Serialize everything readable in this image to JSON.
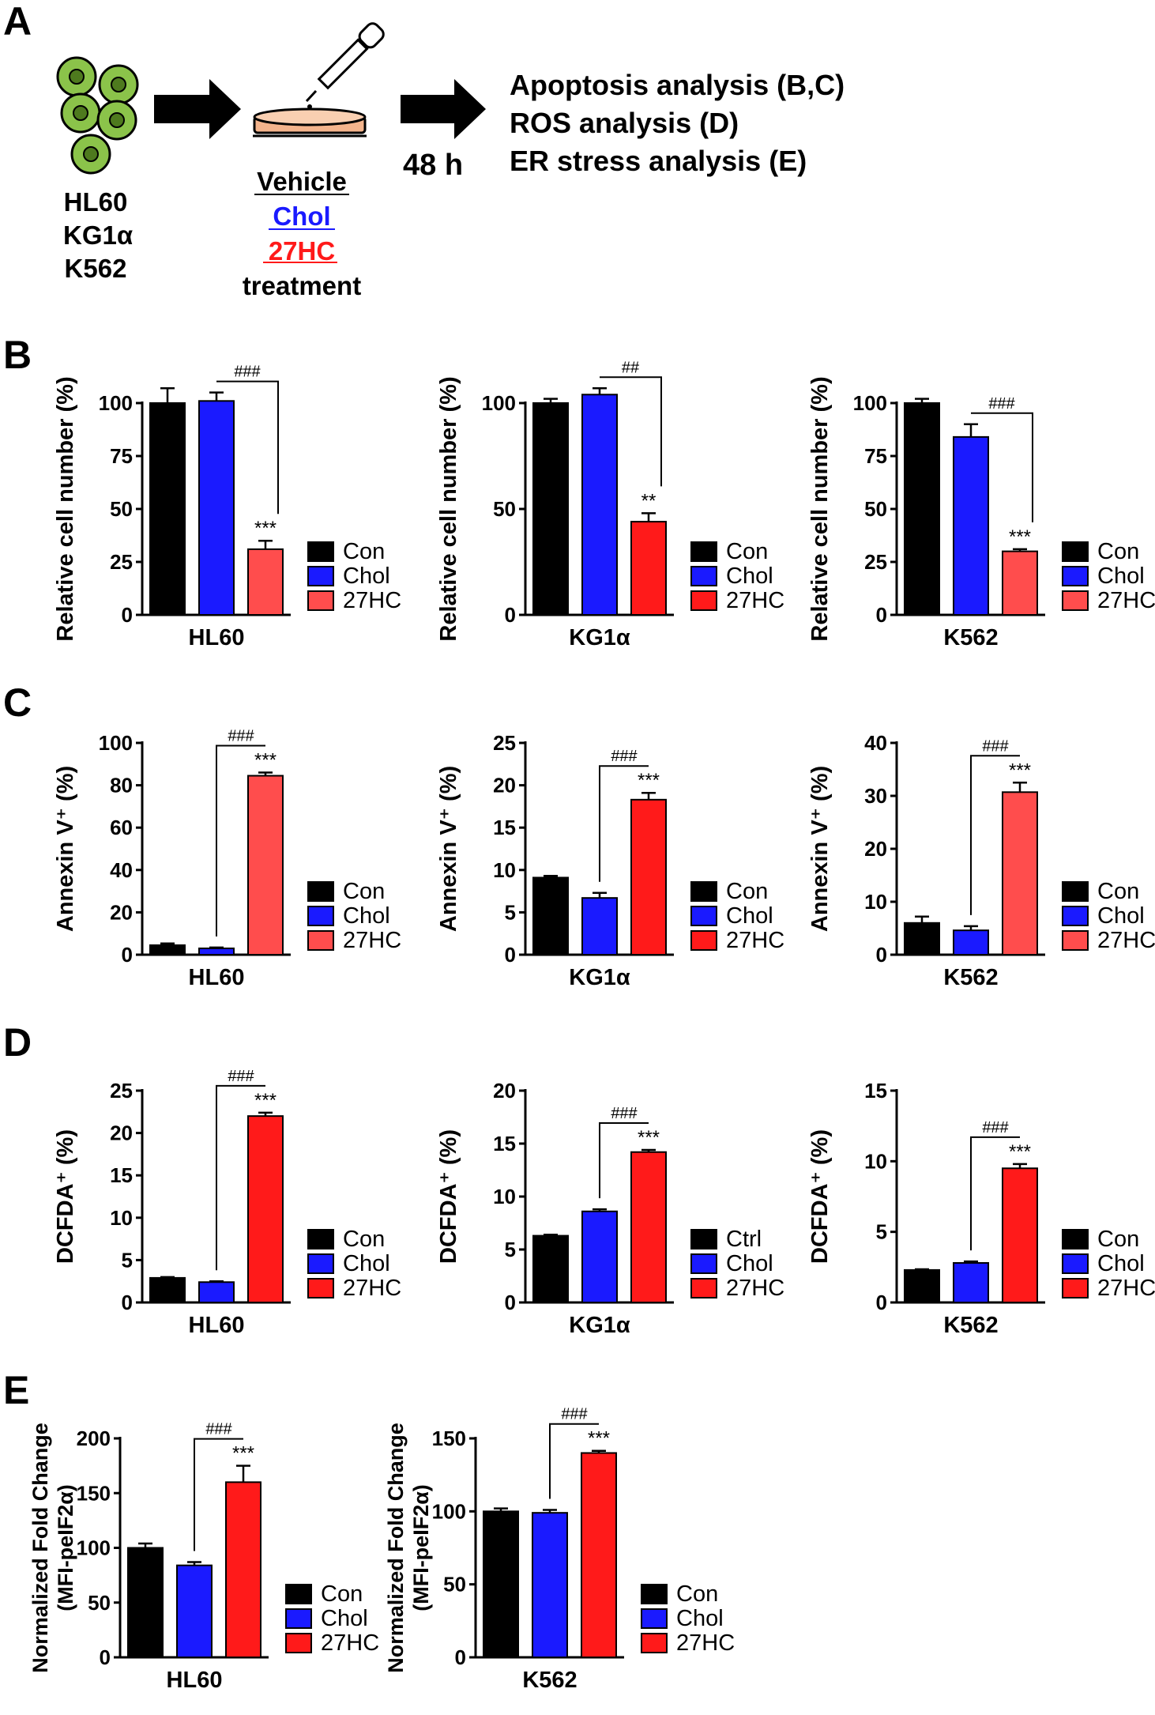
{
  "panel_letters": [
    "A",
    "B",
    "C",
    "D",
    "E"
  ],
  "schema": {
    "cell_lines": [
      "HL60",
      "KG1α",
      "K562"
    ],
    "treatments": [
      "Vehicle",
      "Chol",
      "27HC"
    ],
    "treatment_word": "treatment",
    "duration": "48 h",
    "analyses": [
      "Apoptosis analysis (B,C)",
      "ROS analysis (D)",
      "ER stress analysis (E)"
    ],
    "colors": {
      "cell_fill": "#8BC34A",
      "chol": "#1a1aff",
      "hc": "#ff1a1a",
      "dish": "#f4b48c",
      "arrow": "#000000"
    }
  },
  "chart_data": [
    {
      "id": "B_HL60",
      "type": "bar",
      "ylabel": "Relative cell number (%)",
      "xlabel": "HL60",
      "categories": [
        "Con",
        "Chol",
        "27HC"
      ],
      "values": [
        100,
        101,
        31
      ],
      "errors": [
        7,
        4,
        4
      ],
      "ylim": [
        0,
        100
      ],
      "yticks": [
        0,
        25,
        50,
        75,
        100
      ],
      "colors": [
        "#000000",
        "#1a1aff",
        "#ff4d4d"
      ],
      "legend": [
        "Con",
        "Chol",
        "27HC"
      ],
      "star_label": "***",
      "hash_label": "###",
      "bracket_from": 1
    },
    {
      "id": "B_KG1a",
      "type": "bar",
      "ylabel": "Relative cell number (%)",
      "xlabel": "KG1α",
      "categories": [
        "Con",
        "Chol",
        "27HC"
      ],
      "values": [
        100,
        104,
        44
      ],
      "errors": [
        2,
        3,
        4
      ],
      "ylim": [
        0,
        100
      ],
      "yticks": [
        0,
        50,
        100
      ],
      "colors": [
        "#000000",
        "#1a1aff",
        "#ff1a1a"
      ],
      "legend": [
        "Con",
        "Chol",
        "27HC"
      ],
      "star_label": "**",
      "hash_label": "##",
      "bracket_from": 1
    },
    {
      "id": "B_K562",
      "type": "bar",
      "ylabel": "Relative cell number (%)",
      "xlabel": "K562",
      "categories": [
        "Con",
        "Chol",
        "27HC"
      ],
      "values": [
        100,
        84,
        30
      ],
      "errors": [
        2,
        6,
        1
      ],
      "ylim": [
        0,
        100
      ],
      "yticks": [
        0,
        25,
        50,
        75,
        100
      ],
      "colors": [
        "#000000",
        "#1a1aff",
        "#ff4d4d"
      ],
      "legend": [
        "Con",
        "Chol",
        "27HC"
      ],
      "star_label": "***",
      "hash_label": "###",
      "bracket_from": 1
    },
    {
      "id": "C_HL60",
      "type": "bar",
      "ylabel": "Annexin V⁺ (%)",
      "xlabel": "HL60",
      "categories": [
        "Con",
        "Chol",
        "27HC"
      ],
      "values": [
        4.5,
        3,
        84.5
      ],
      "errors": [
        0.8,
        0.4,
        1.5
      ],
      "ylim": [
        0,
        100
      ],
      "yticks": [
        0,
        20,
        40,
        60,
        80,
        100
      ],
      "colors": [
        "#000000",
        "#1a1aff",
        "#ff4d4d"
      ],
      "legend": [
        "Con",
        "Chol",
        "27HC"
      ],
      "star_label": "***",
      "hash_label": "###",
      "bracket_from": 1
    },
    {
      "id": "C_KG1a",
      "type": "bar",
      "ylabel": "Annexin V⁺ (%)",
      "xlabel": "KG1α",
      "categories": [
        "Con",
        "Chol",
        "27HC"
      ],
      "values": [
        9.1,
        6.7,
        18.3
      ],
      "errors": [
        0.2,
        0.6,
        0.8
      ],
      "ylim": [
        0,
        25
      ],
      "yticks": [
        0,
        5,
        10,
        15,
        20,
        25
      ],
      "colors": [
        "#000000",
        "#1a1aff",
        "#ff1a1a"
      ],
      "legend": [
        "Con",
        "Chol",
        "27HC"
      ],
      "star_label": "***",
      "hash_label": "###",
      "bracket_from": 1
    },
    {
      "id": "C_K562",
      "type": "bar",
      "ylabel": "Annexin V⁺ (%)",
      "xlabel": "K562",
      "categories": [
        "Con",
        "Chol",
        "27HC"
      ],
      "values": [
        6,
        4.6,
        30.7
      ],
      "errors": [
        1.2,
        0.8,
        1.8
      ],
      "ylim": [
        0,
        40
      ],
      "yticks": [
        0,
        10,
        20,
        30,
        40
      ],
      "colors": [
        "#000000",
        "#1a1aff",
        "#ff4d4d"
      ],
      "legend": [
        "Con",
        "Chol",
        "27HC"
      ],
      "star_label": "***",
      "hash_label": "###",
      "bracket_from": 1
    },
    {
      "id": "D_HL60",
      "type": "bar",
      "ylabel": "DCFDA⁺ (%)",
      "xlabel": "HL60",
      "categories": [
        "Con",
        "Chol",
        "27HC"
      ],
      "values": [
        2.9,
        2.4,
        22
      ],
      "errors": [
        0.1,
        0.1,
        0.4
      ],
      "ylim": [
        0,
        25
      ],
      "yticks": [
        0,
        5,
        10,
        15,
        20,
        25
      ],
      "colors": [
        "#000000",
        "#1a1aff",
        "#ff1a1a"
      ],
      "legend": [
        "Con",
        "Chol",
        "27HC"
      ],
      "star_label": "***",
      "hash_label": "###",
      "bracket_from": 1
    },
    {
      "id": "D_KG1a",
      "type": "bar",
      "ylabel": "DCFDA⁺ (%)",
      "xlabel": "KG1α",
      "categories": [
        "Ctrl",
        "Chol",
        "27HC"
      ],
      "values": [
        6.3,
        8.6,
        14.2
      ],
      "errors": [
        0.1,
        0.2,
        0.2
      ],
      "ylim": [
        0,
        20
      ],
      "yticks": [
        0,
        5,
        10,
        15,
        20
      ],
      "colors": [
        "#000000",
        "#1a1aff",
        "#ff1a1a"
      ],
      "legend": [
        "Ctrl",
        "Chol",
        "27HC"
      ],
      "star_label": "***",
      "hash_label": "###",
      "bracket_from": 1
    },
    {
      "id": "D_K562",
      "type": "bar",
      "ylabel": "DCFDA⁺ (%)",
      "xlabel": "K562",
      "categories": [
        "Con",
        "Chol",
        "27HC"
      ],
      "values": [
        2.3,
        2.8,
        9.5
      ],
      "errors": [
        0.05,
        0.1,
        0.3
      ],
      "ylim": [
        0,
        15
      ],
      "yticks": [
        0,
        5,
        10,
        15
      ],
      "colors": [
        "#000000",
        "#1a1aff",
        "#ff1a1a"
      ],
      "legend": [
        "Con",
        "Chol",
        "27HC"
      ],
      "star_label": "***",
      "hash_label": "###",
      "bracket_from": 1
    },
    {
      "id": "E_HL60",
      "type": "bar",
      "ylabel": [
        "Normalized Fold Change",
        "(MFI-peIF2α)"
      ],
      "xlabel": "HL60",
      "categories": [
        "Con",
        "Chol",
        "27HC"
      ],
      "values": [
        100,
        84,
        160
      ],
      "errors": [
        4,
        3,
        15
      ],
      "ylim": [
        0,
        200
      ],
      "yticks": [
        0,
        50,
        100,
        150,
        200
      ],
      "colors": [
        "#000000",
        "#1a1aff",
        "#ff1a1a"
      ],
      "legend": [
        "Con",
        "Chol",
        "27HC"
      ],
      "star_label": "***",
      "hash_label": "###",
      "bracket_from": 1
    },
    {
      "id": "E_K562",
      "type": "bar",
      "ylabel": [
        "Normalized Fold Change",
        "(MFI-peIF2α)"
      ],
      "xlabel": "K562",
      "categories": [
        "Con",
        "Chol",
        "27HC"
      ],
      "values": [
        100,
        99,
        140
      ],
      "errors": [
        2,
        2,
        1.5
      ],
      "ylim": [
        0,
        150
      ],
      "yticks": [
        0,
        50,
        100,
        150
      ],
      "colors": [
        "#000000",
        "#1a1aff",
        "#ff1a1a"
      ],
      "legend": [
        "Con",
        "Chol",
        "27HC"
      ],
      "star_label": "***",
      "hash_label": "###",
      "bracket_from": 1
    }
  ]
}
